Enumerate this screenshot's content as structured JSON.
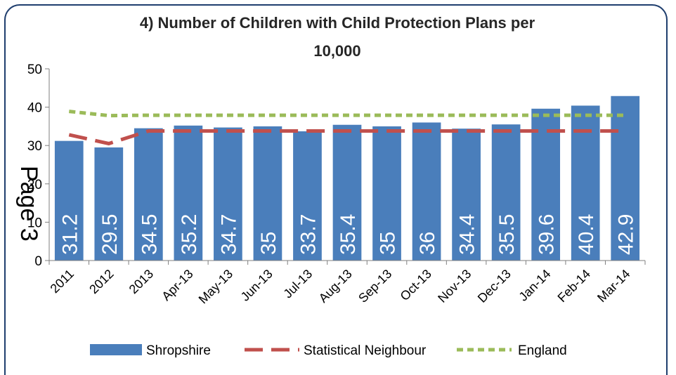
{
  "chart_data": {
    "type": "bar",
    "title_line1": "4) Number of Children with Child Protection Plans per",
    "title_line2": "10,000",
    "categories": [
      "2011",
      "2012",
      "2013",
      "Apr-13",
      "May-13",
      "Jun-13",
      "Jul-13",
      "Aug-13",
      "Sep-13",
      "Oct-13",
      "Nov-13",
      "Dec-13",
      "Jan-14",
      "Feb-14",
      "Mar-14"
    ],
    "data_labels": [
      "31.2",
      "29.5",
      "34.5",
      "35.2",
      "34.7",
      "35",
      "33.7",
      "35.4",
      "35",
      "36",
      "34.4",
      "35.5",
      "39.6",
      "40.4",
      "42.9"
    ],
    "series": [
      {
        "name": "Shropshire",
        "kind": "bar",
        "color": "#4a7ebb",
        "values": [
          31.2,
          29.5,
          34.5,
          35.2,
          34.7,
          35,
          33.7,
          35.4,
          35,
          36,
          34.4,
          35.5,
          39.6,
          40.4,
          42.9
        ]
      },
      {
        "name": "Statistical Neighbour",
        "kind": "line-dashed",
        "color": "#c0504d",
        "values": [
          32.8,
          30.5,
          33.8,
          33.8,
          33.8,
          33.8,
          33.8,
          33.8,
          33.8,
          33.8,
          33.8,
          33.8,
          33.8,
          33.8,
          33.8
        ]
      },
      {
        "name": "England",
        "kind": "line-dotted",
        "color": "#9bbb59",
        "values": [
          38.9,
          37.8,
          37.9,
          37.9,
          37.9,
          37.9,
          37.9,
          37.9,
          37.9,
          37.9,
          37.9,
          37.9,
          37.9,
          37.9,
          37.9
        ]
      }
    ],
    "y_ticks": [
      "0",
      "10",
      "20",
      "30",
      "40",
      "50"
    ],
    "ylim": [
      0,
      50
    ],
    "grid": false,
    "legend_position": "bottom"
  },
  "watermark_text": "Page 3"
}
